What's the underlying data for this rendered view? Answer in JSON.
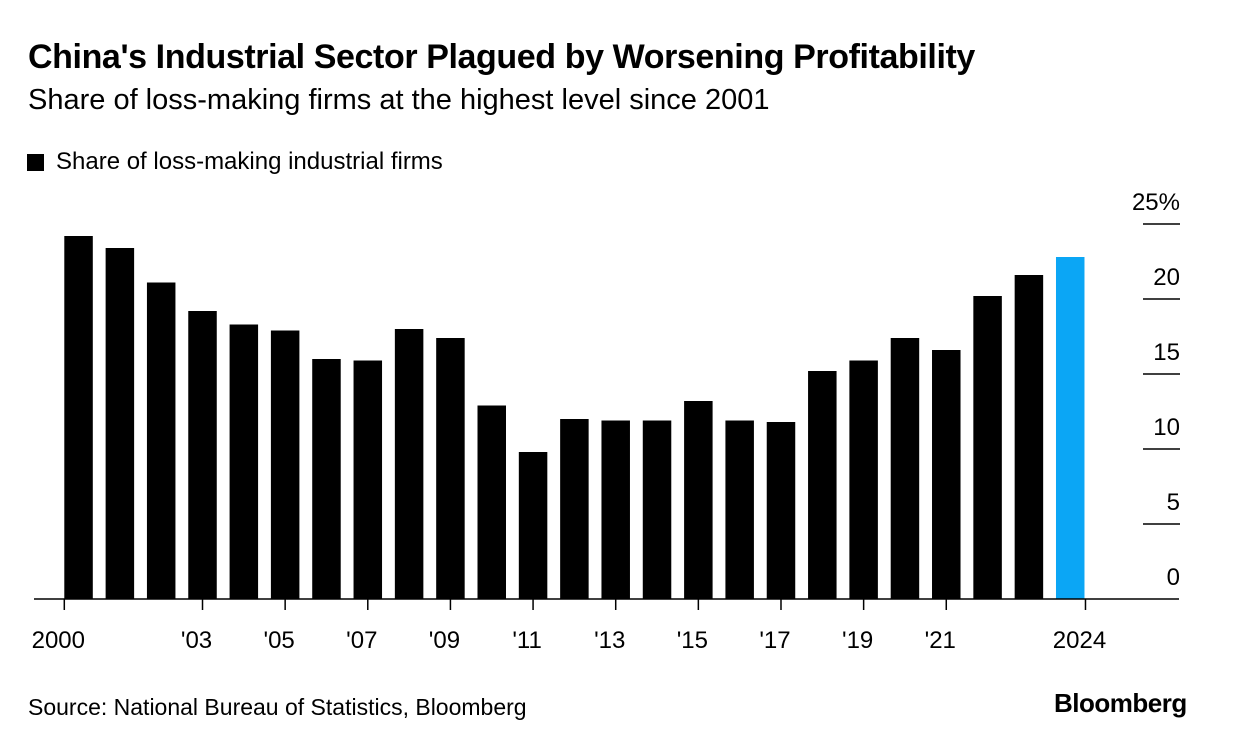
{
  "header": {
    "title": "China's Industrial Sector Plagued by Worsening Profitability",
    "subtitle": "Share of loss-making firms at the highest level since 2001"
  },
  "legend": {
    "items": [
      {
        "label": "Share of loss-making industrial firms",
        "icon": "square-swatch",
        "color": "#000000"
      }
    ]
  },
  "footer": {
    "source": "Source: National Bureau of Statistics, Bloomberg",
    "logo": "Bloomberg"
  },
  "colors": {
    "bar": "#000000",
    "highlight": "#0BA6F5",
    "axis": "#000000"
  },
  "chart_data": {
    "type": "bar",
    "title": "China's Industrial Sector Plagued by Worsening Profitability",
    "subtitle": "Share of loss-making firms at the highest level since 2001",
    "xlabel": "",
    "ylabel": "",
    "categories": [
      "2000",
      "2001",
      "2002",
      "2003",
      "2004",
      "2005",
      "2006",
      "2007",
      "2008",
      "2009",
      "2010",
      "2011",
      "2012",
      "2013",
      "2014",
      "2015",
      "2016",
      "2017",
      "2018",
      "2019",
      "2020",
      "2021",
      "2022",
      "2023",
      "2024"
    ],
    "series": [
      {
        "name": "Share of loss-making industrial firms",
        "unit": "%",
        "values": [
          24.2,
          23.4,
          21.1,
          19.2,
          18.3,
          17.9,
          16.0,
          15.9,
          18.0,
          17.4,
          12.9,
          9.8,
          12.0,
          11.9,
          11.9,
          13.2,
          11.9,
          11.8,
          15.2,
          15.9,
          17.4,
          16.6,
          20.2,
          21.6,
          22.8
        ]
      }
    ],
    "highlight_category": "2024",
    "ylim": [
      0,
      25
    ],
    "y_ticks": [
      0,
      5,
      10,
      15,
      20,
      25
    ],
    "y_tick_labels": [
      "0",
      "5",
      "10",
      "15",
      "20",
      "25%"
    ],
    "y_axis_side": "right",
    "x_ticks": [
      {
        "category": "2000",
        "label": "2000"
      },
      {
        "category": "2003",
        "label": "'03"
      },
      {
        "category": "2005",
        "label": "'05"
      },
      {
        "category": "2007",
        "label": "'07"
      },
      {
        "category": "2009",
        "label": "'09"
      },
      {
        "category": "2011",
        "label": "'11"
      },
      {
        "category": "2013",
        "label": "'13"
      },
      {
        "category": "2015",
        "label": "'15"
      },
      {
        "category": "2017",
        "label": "'17"
      },
      {
        "category": "2019",
        "label": "'19"
      },
      {
        "category": "2021",
        "label": "'21"
      },
      {
        "category": "2024",
        "label": "2024"
      }
    ],
    "grid": false,
    "legend_position": "top-left"
  }
}
